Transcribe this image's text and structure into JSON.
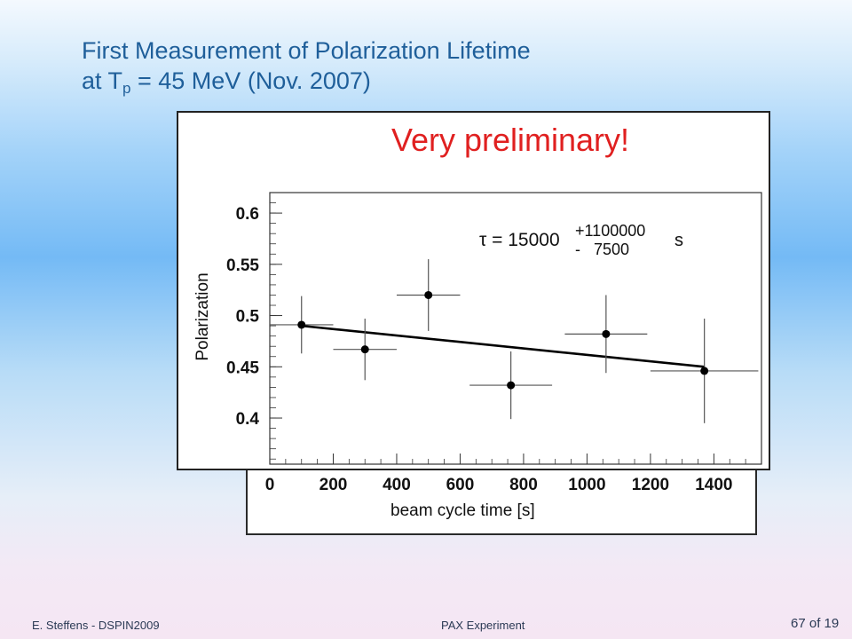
{
  "slide": {
    "title_line1": "First Measurement of Polarization Lifetime",
    "title_line2_prefix": "at T",
    "title_line2_sub": "p",
    "title_line2_suffix": " = 45 MeV (Nov. 2007)"
  },
  "footer": {
    "author": "E. Steffens  -  DSPIN2009",
    "center": "PAX Experiment",
    "page": "67 of 19"
  },
  "chart_data": {
    "type": "scatter",
    "annotation_banner": "Very preliminary!",
    "annotation_color": "#e02020",
    "xlabel": "beam cycle time [s]",
    "ylabel": "Polarization",
    "xlim": [
      0,
      1550
    ],
    "ylim": [
      0.355,
      0.62
    ],
    "xticks": [
      0,
      200,
      400,
      600,
      800,
      1000,
      1200,
      1400
    ],
    "xtick_labels": [
      "0",
      "200",
      "400",
      "600",
      "800",
      "1000",
      "1200",
      "1400"
    ],
    "yticks": [
      0.4,
      0.45,
      0.5,
      0.55,
      0.6
    ],
    "ytick_labels": [
      "0.4",
      "0.45",
      "0.5",
      "0.55",
      "0.6"
    ],
    "fit_annotation": {
      "symbol": "τ",
      "text": " = 15000",
      "upper": "+1100000",
      "lower": "-   7500",
      "unit": "s"
    },
    "points": [
      {
        "x": 100,
        "y": 0.491,
        "xerr": 100,
        "yerr": 0.028
      },
      {
        "x": 300,
        "y": 0.467,
        "xerr": 100,
        "yerr": 0.03
      },
      {
        "x": 500,
        "y": 0.52,
        "xerr": 100,
        "yerr": 0.035
      },
      {
        "x": 760,
        "y": 0.432,
        "xerr": 130,
        "yerr": 0.033
      },
      {
        "x": 1060,
        "y": 0.482,
        "xerr": 130,
        "yerr": 0.038
      },
      {
        "x": 1370,
        "y": 0.446,
        "xerr": 170,
        "yerr": 0.051
      }
    ],
    "fit_line": {
      "x": [
        100,
        1370
      ],
      "y": [
        0.49,
        0.45
      ]
    },
    "grid": false
  }
}
